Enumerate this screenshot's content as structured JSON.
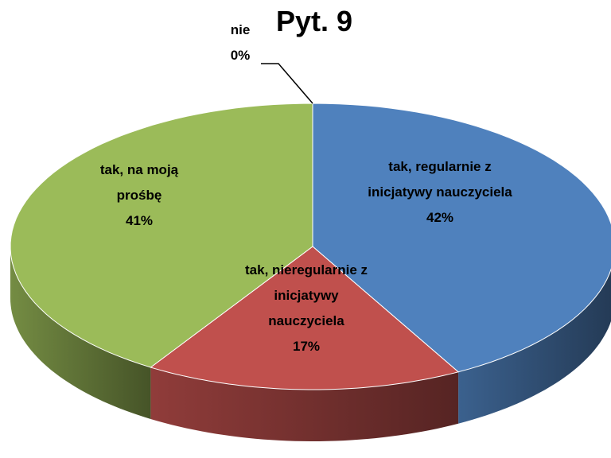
{
  "chart_data": {
    "type": "pie3d",
    "title": "Pyt. 9",
    "categories": [
      "tak, regularnie z inicjatywy nauczyciela",
      "tak, nieregularnie z inicjatywy nauczyciela",
      "tak, na moją prośbę",
      "nie"
    ],
    "values": [
      42,
      17,
      41,
      0
    ],
    "value_labels": [
      "42%",
      "17%",
      "41%",
      "0%"
    ],
    "colors": [
      "#4f81bd",
      "#c0504d",
      "#9bbb59",
      "#8064a2"
    ]
  }
}
